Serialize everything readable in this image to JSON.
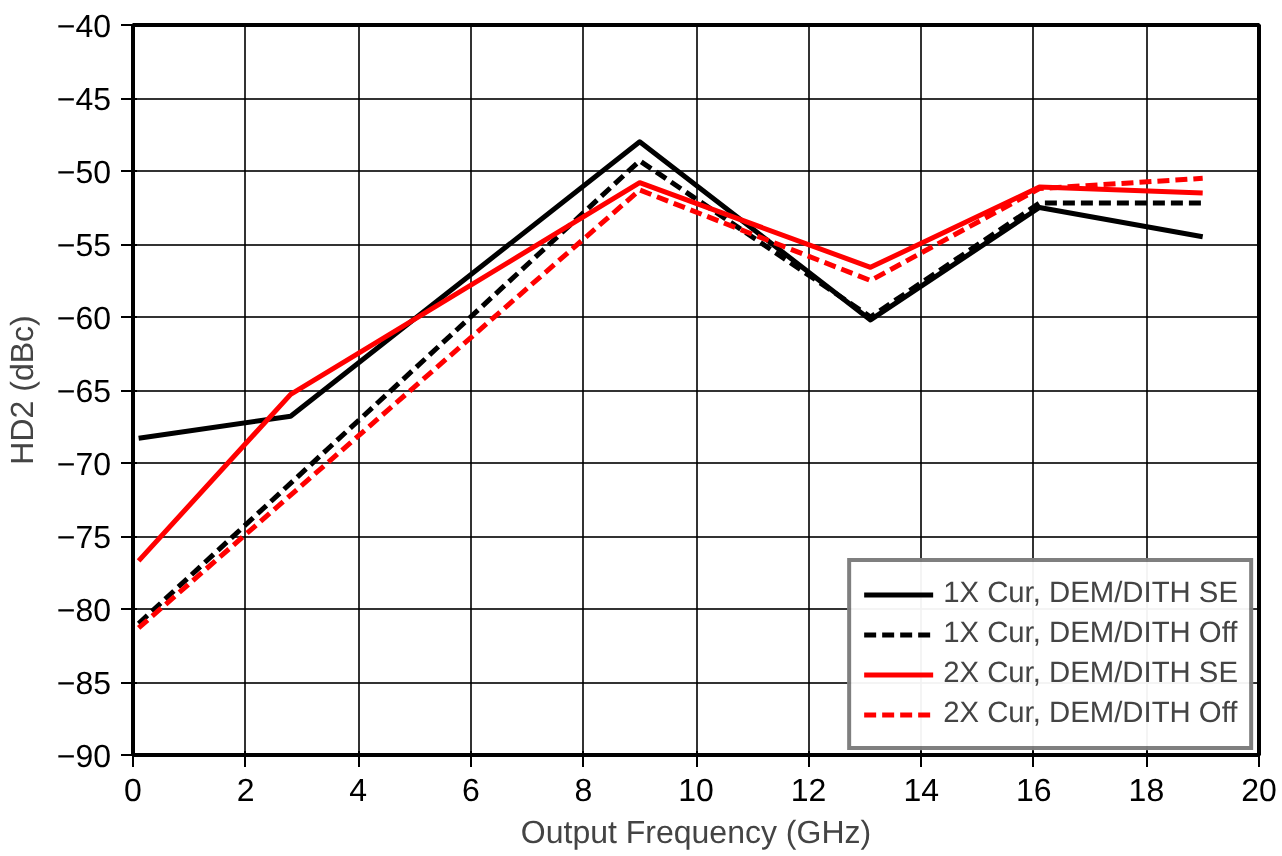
{
  "chart_data": {
    "type": "line",
    "xlabel": "Output Frequency (GHz)",
    "ylabel": "HD2 (dBc)",
    "xlim": [
      0,
      20
    ],
    "ylim": [
      -90,
      -40
    ],
    "xticks": [
      0,
      2,
      4,
      6,
      8,
      10,
      12,
      14,
      16,
      18,
      20
    ],
    "yticks": [
      -90,
      -85,
      -80,
      -75,
      -70,
      -65,
      -60,
      -55,
      -50,
      -45,
      -40
    ],
    "grid": true,
    "legend": "bottom right",
    "series": [
      {
        "name": "1X Cur, DEM/DITH SE",
        "color": "#000000",
        "line_style": "solid",
        "x": [
          0.1,
          2.8,
          9,
          13.1,
          16.1,
          19
        ],
        "values": [
          -68.3,
          -66.8,
          -48,
          -60.2,
          -52.5,
          -54.5
        ]
      },
      {
        "name": "1X Cur, DEM/DITH Off",
        "color": "#000000",
        "line_style": "dashed",
        "x": [
          0.1,
          9,
          13.1,
          16.1,
          19
        ],
        "values": [
          -81,
          -49.3,
          -60,
          -52.2,
          -52.2
        ]
      },
      {
        "name": "2X Cur, DEM/DITH SE",
        "color": "#ff0000",
        "line_style": "solid",
        "x": [
          0.1,
          2.8,
          9,
          13.1,
          16.1,
          19
        ],
        "values": [
          -76.7,
          -65.3,
          -50.8,
          -56.6,
          -51.1,
          -51.5
        ]
      },
      {
        "name": "2X Cur, DEM/DITH Off",
        "color": "#ff0000",
        "line_style": "dashed",
        "x": [
          0.1,
          9,
          13.1,
          16.1,
          19
        ],
        "values": [
          -81.3,
          -51.3,
          -57.5,
          -51.2,
          -50.5
        ]
      }
    ]
  }
}
